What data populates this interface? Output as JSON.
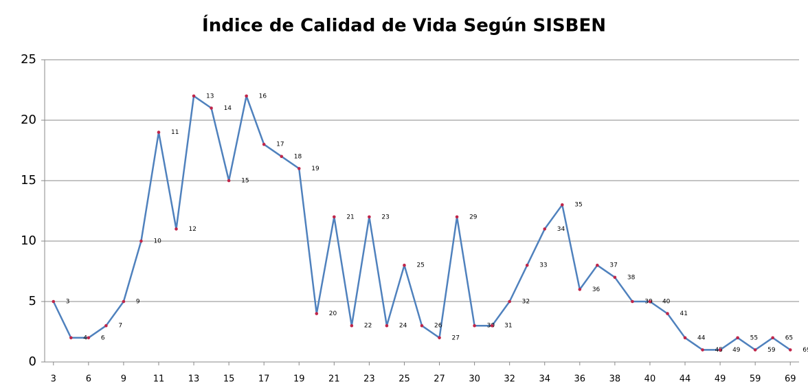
{
  "chart_data": {
    "type": "line",
    "title": "Índice de Calidad de Vida Según SISBEN",
    "categories": [
      "3",
      "4",
      "6",
      "7",
      "9",
      "10",
      "11",
      "12",
      "13",
      "14",
      "15",
      "16",
      "17",
      "18",
      "19",
      "20",
      "21",
      "22",
      "23",
      "24",
      "25",
      "26",
      "27",
      "29",
      "30",
      "31",
      "32",
      "33",
      "34",
      "35",
      "36",
      "37",
      "38",
      "39",
      "40",
      "41",
      "44",
      "45",
      "49",
      "55",
      "59",
      "65",
      "69"
    ],
    "series": [
      {
        "color": "#4f81bd",
        "marker_color": "#c0264a",
        "values": [
          5,
          2,
          2,
          3,
          5,
          10,
          19,
          11,
          22,
          21,
          15,
          22,
          18,
          17,
          16,
          4,
          12,
          3,
          12,
          3,
          8,
          3,
          2,
          12,
          3,
          3,
          5,
          8,
          11,
          13,
          6,
          8,
          7,
          5,
          5,
          4,
          2,
          1,
          1,
          2,
          1,
          2,
          1
        ]
      }
    ],
    "x_label_every": 2,
    "ylim": [
      0,
      25
    ],
    "yticks": [
      0,
      5,
      10,
      15,
      20,
      25
    ],
    "grid": true
  }
}
